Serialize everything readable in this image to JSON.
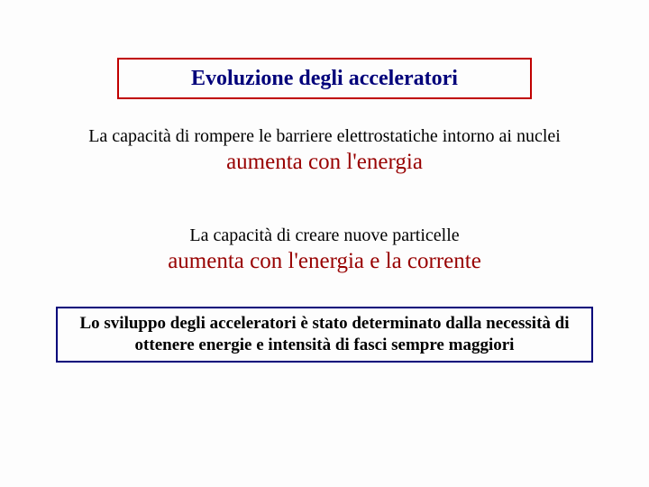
{
  "colors": {
    "title_border": "#c00000",
    "title_text": "#00007a",
    "body_black": "#000000",
    "emphasis_red": "#980000",
    "bottom_border": "#00007a",
    "bottom_text": "#000000",
    "background": "#fdfdfd"
  },
  "title": "Evoluzione degli acceleratori",
  "block1": {
    "intro": "La capacità di rompere le barriere elettrostatiche intorno ai nuclei",
    "emphasis": "aumenta con l'energia"
  },
  "block2": {
    "intro": "La capacità di creare nuove particelle",
    "emphasis": "aumenta con l'energia e la corrente"
  },
  "bottom": "Lo sviluppo degli acceleratori è stato determinato dalla necessità di ottenere energie e intensità di fasci sempre maggiori"
}
